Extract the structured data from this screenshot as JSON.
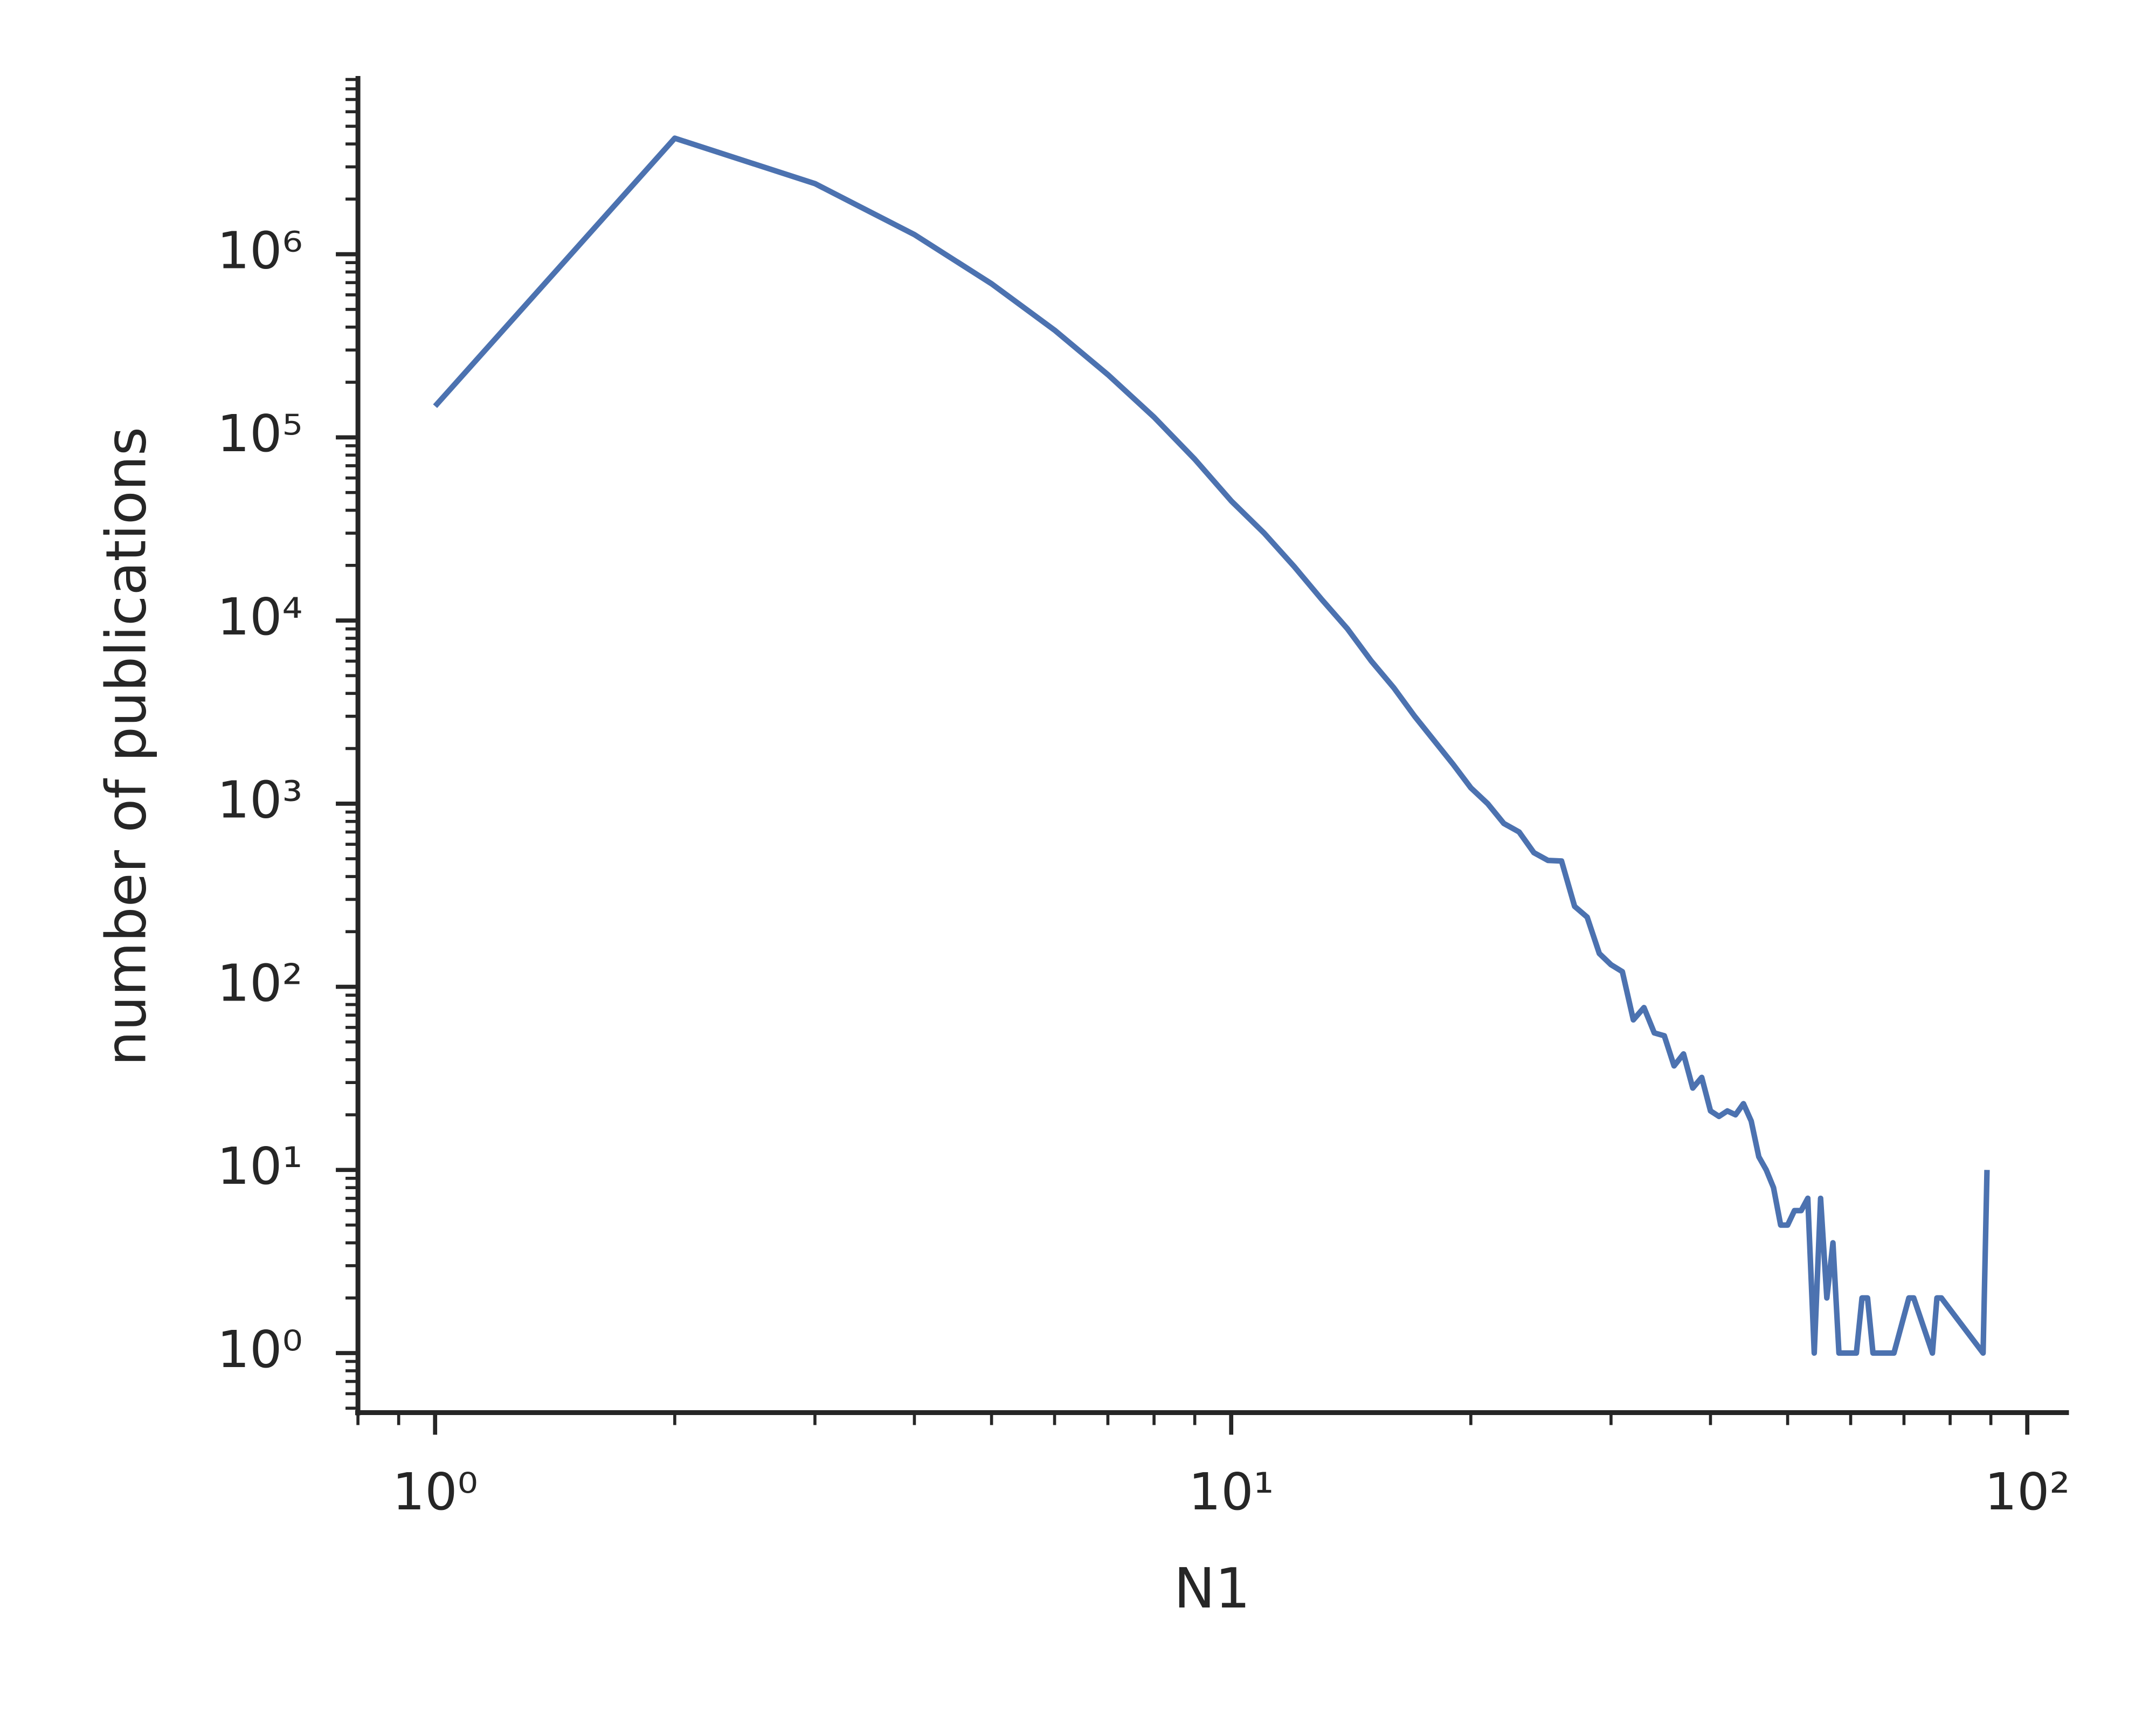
{
  "chart_data": {
    "type": "line",
    "x_label": "N1",
    "y_label": "number of publications",
    "x_log": true,
    "y_log": true,
    "color": "#4c72b0",
    "x": [
      1,
      2,
      3,
      4,
      5,
      6,
      7,
      8,
      9,
      10,
      11,
      12,
      13,
      14,
      15,
      16,
      17,
      18,
      19,
      20,
      21,
      22,
      23,
      24,
      25,
      26,
      27,
      28,
      29,
      30,
      31,
      32,
      33,
      34,
      35,
      36,
      37,
      38,
      39,
      40,
      41,
      42,
      43,
      44,
      45,
      46,
      47,
      48,
      49,
      50,
      51,
      52,
      53,
      54,
      55,
      56,
      57,
      58,
      59,
      60,
      61,
      62,
      63,
      64,
      68,
      71,
      72,
      76,
      77,
      78,
      88,
      89
    ],
    "values": [
      148000,
      4300000,
      2430000,
      1280000,
      690000,
      385000,
      220000,
      129000,
      76000,
      45000,
      30000,
      19700,
      13000,
      9000,
      6000,
      4300,
      3000,
      2200,
      1640,
      1220,
      1000,
      780,
      700,
      540,
      490,
      486,
      275,
      240,
      152,
      132,
      121,
      66,
      77,
      56,
      54,
      37,
      43,
      28,
      32,
      21,
      19.6,
      21,
      20,
      23,
      18.5,
      11.8,
      10,
      8,
      5,
      5,
      6,
      6,
      7,
      1,
      7,
      2,
      4,
      1,
      1,
      1,
      1,
      2,
      2,
      1,
      1,
      2,
      2,
      1,
      2,
      2,
      1,
      10
    ],
    "xlim": [
      0.8,
      112.8
    ],
    "ylim": [
      0.473,
      9400000
    ],
    "xticks": [
      {
        "value": 1,
        "label": "10⁰"
      },
      {
        "value": 10,
        "label": "10¹"
      },
      {
        "value": 100,
        "label": "10²"
      }
    ],
    "yticks": [
      {
        "value": 1,
        "label": "10⁰"
      },
      {
        "value": 10,
        "label": "10¹"
      },
      {
        "value": 100,
        "label": "10²"
      },
      {
        "value": 1000,
        "label": "10³"
      },
      {
        "value": 10000,
        "label": "10⁴"
      },
      {
        "value": 100000,
        "label": "10⁵"
      },
      {
        "value": 1000000,
        "label": "10⁶"
      }
    ],
    "xminor_ticks": [
      0.8,
      0.9,
      2,
      3,
      4,
      5,
      6,
      7,
      8,
      9,
      20,
      30,
      40,
      50,
      60,
      70,
      80,
      90
    ],
    "yminor_ticks": [
      0.5,
      0.6,
      0.7,
      0.8,
      0.9,
      2,
      3,
      4,
      5,
      6,
      7,
      8,
      9,
      20,
      30,
      40,
      50,
      60,
      70,
      80,
      90,
      200,
      300,
      400,
      500,
      600,
      700,
      800,
      900,
      2000,
      3000,
      4000,
      5000,
      6000,
      7000,
      8000,
      9000,
      20000,
      30000,
      40000,
      50000,
      60000,
      70000,
      80000,
      90000,
      200000,
      300000,
      400000,
      500000,
      600000,
      700000,
      800000,
      900000,
      2000000,
      3000000,
      4000000,
      5000000,
      6000000,
      7000000,
      8000000,
      9000000
    ]
  }
}
